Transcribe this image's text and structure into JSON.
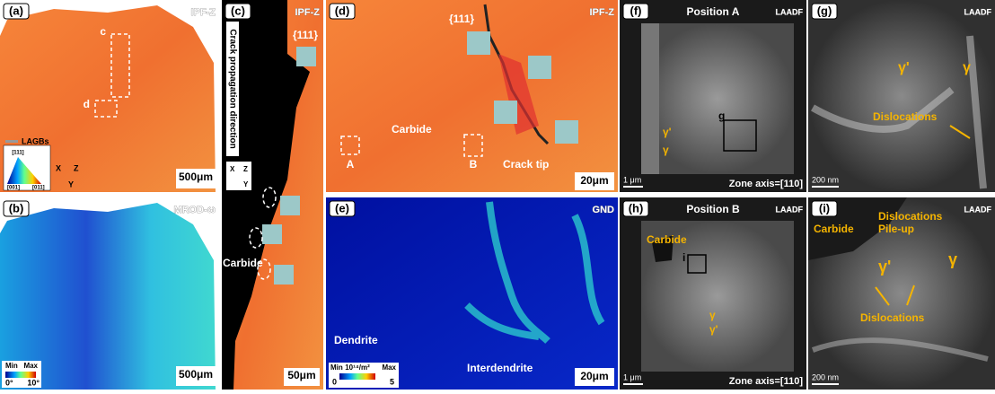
{
  "panels": {
    "a": {
      "label": "(a)",
      "badge": "IPF-Z",
      "markers": [
        "c",
        "d"
      ],
      "legend": "LAGBs",
      "triangle": [
        "[111]",
        "[001]",
        "[011]"
      ],
      "axes": [
        "X",
        "Z",
        "Y"
      ],
      "scale_bar": "500μm"
    },
    "b": {
      "label": "(b)",
      "badge": "MROD-ω",
      "colorbar": [
        "Min",
        "Max",
        "0°",
        "10°"
      ],
      "scale_bar": "500μm"
    },
    "c": {
      "label": "(c)",
      "badge": "IPF-Z",
      "plane": "{111}",
      "arrow_text": "Crack propagation direction",
      "axes": [
        "X",
        "Z",
        "Y"
      ],
      "annotation": "Carbide",
      "scale_bar": "50μm"
    },
    "d": {
      "label": "(d)",
      "badge": "IPF-Z",
      "plane": "{111}",
      "annotations": [
        "Carbide",
        "A",
        "B",
        "Crack tip"
      ],
      "scale_bar": "20μm"
    },
    "e": {
      "label": "(e)",
      "badge": "GND",
      "colorbar": [
        "Min",
        "10¹⁴/m²",
        "Max",
        "0",
        "5"
      ],
      "annotations": [
        "Dendrite",
        "Interdendrite"
      ],
      "scale_bar": "20μm"
    },
    "f": {
      "label": "(f)",
      "title": "Position A",
      "badge": "LAADF",
      "annotations": [
        "γ'",
        "γ",
        "g"
      ],
      "scale_bar": "1 μm",
      "zone_axis": "Zone axis=[110]"
    },
    "g": {
      "label": "(g)",
      "badge": "LAADF",
      "annotations": [
        "γ'",
        "γ",
        "Dislocations"
      ],
      "scale_bar": "200 nm"
    },
    "h": {
      "label": "(h)",
      "title": "Position B",
      "badge": "LAADF",
      "annotations": [
        "Carbide",
        "i",
        "γ",
        "γ'"
      ],
      "scale_bar": "1 μm",
      "zone_axis": "Zone axis=[110]"
    },
    "i": {
      "label": "(i)",
      "badge": "LAADF",
      "annotations": [
        "Carbide",
        "Dislocations",
        "Pile-up",
        "γ'",
        "γ",
        "Dislocations"
      ],
      "scale_bar": "200 nm"
    }
  }
}
